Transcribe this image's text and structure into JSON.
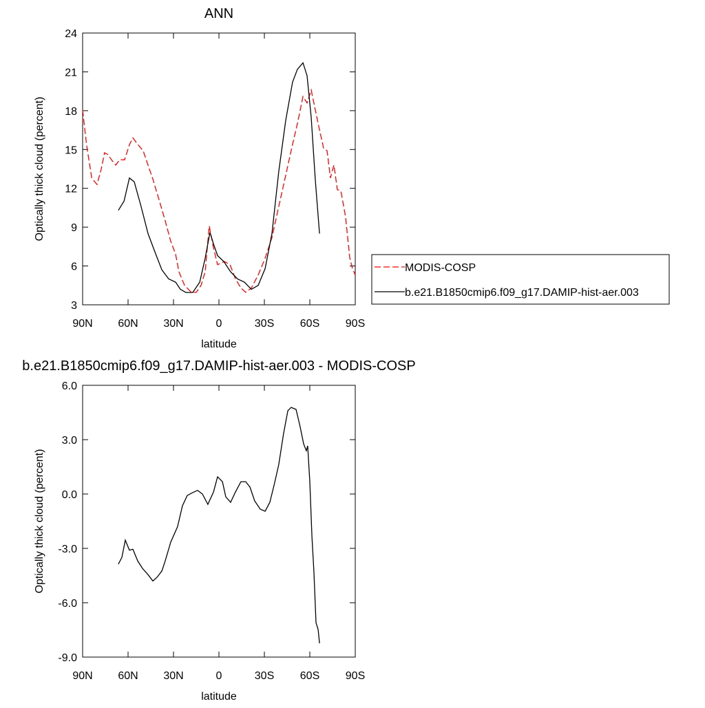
{
  "chart_data": [
    {
      "type": "line",
      "title": "ANN",
      "xlabel": "latitude",
      "ylabel": "Optically thick cloud (percent)",
      "xlim": [
        90,
        -90
      ],
      "xticks": [
        {
          "value": 90,
          "label": "90N"
        },
        {
          "value": 60,
          "label": "60N"
        },
        {
          "value": 30,
          "label": "30N"
        },
        0,
        {
          "value": -30,
          "label": "30S"
        },
        {
          "value": -60,
          "label": "60S"
        },
        {
          "value": -90,
          "label": "90S"
        }
      ],
      "ylim": [
        3,
        24
      ],
      "yticks": [
        3,
        6,
        9,
        12,
        15,
        18,
        21,
        24
      ],
      "legend": "right",
      "series": [
        {
          "name": "MODIS-COSP",
          "color": "#ff0000",
          "dash": true,
          "x": [
            90,
            87.3,
            84,
            80.5,
            77.7,
            75.5,
            73.2,
            70.9,
            68.2,
            65.5,
            62.3,
            59,
            56.8,
            53.6,
            50,
            46.8,
            43.6,
            39,
            35.5,
            31.8,
            28.6,
            26.4,
            22.7,
            18.2,
            15,
            11.8,
            9.1,
            6.4,
            3.6,
            0.9,
            -3.6,
            -7.3,
            -10.9,
            -14.5,
            -17.7,
            -21.4,
            -25.9,
            -30.5,
            -35,
            -39.5,
            -44.1,
            -48.6,
            -51.8,
            -55.5,
            -58.2,
            -60.9,
            -62.7,
            -65.5,
            -69.1,
            -71.4,
            -73.6,
            -75.9,
            -78.2,
            -80.5,
            -83.6,
            -86.4,
            -88.2,
            -90
          ],
          "values": [
            18.05,
            15.3,
            12.8,
            12.3,
            13.5,
            14.75,
            14.6,
            14.2,
            13.8,
            14.2,
            14.2,
            15.4,
            15.9,
            15.4,
            14.9,
            13.8,
            12.7,
            10.9,
            9.5,
            7.9,
            6.9,
            5.55,
            4.5,
            3.96,
            3.96,
            4.5,
            5.55,
            9.1,
            7.4,
            6.1,
            6.35,
            6.1,
            5.0,
            4.3,
            3.96,
            4.3,
            5.3,
            6.6,
            8.2,
            10.6,
            13.0,
            15.4,
            17.0,
            19.1,
            18.6,
            19.6,
            18.6,
            17.0,
            15.1,
            14.9,
            12.8,
            13.8,
            11.9,
            11.8,
            9.8,
            6.6,
            5.8,
            5.3
          ]
        },
        {
          "name": "b.e21.B1850cmip6.f09_g17.DAMIP-hist-aer.003",
          "color": "#000000",
          "dash": false,
          "x": [
            66.4,
            62.7,
            59.1,
            55.9,
            51.4,
            46.8,
            42.3,
            37.7,
            33.2,
            28.6,
            25.5,
            21.8,
            17.3,
            12.7,
            9.1,
            5.9,
            3.6,
            0.9,
            -3.2,
            -7.7,
            -12.3,
            -16.8,
            -21.4,
            -25.9,
            -30.5,
            -35,
            -39.5,
            -44.1,
            -48.6,
            -51.8,
            -55.5,
            -58.2,
            -60.9,
            -63.6,
            -66.4
          ],
          "values": [
            10.3,
            11.0,
            12.8,
            12.5,
            10.6,
            8.5,
            7.1,
            5.7,
            5.0,
            4.75,
            4.2,
            3.95,
            3.95,
            4.75,
            6.6,
            8.6,
            7.7,
            6.8,
            6.35,
            5.55,
            5.0,
            4.75,
            4.2,
            4.5,
            5.8,
            8.5,
            13.3,
            17.25,
            20.2,
            21.2,
            21.7,
            20.7,
            17.5,
            12.7,
            8.5
          ]
        }
      ]
    },
    {
      "type": "line",
      "title": "b.e21.B1850cmip6.f09_g17.DAMIP-hist-aer.003 - MODIS-COSP",
      "xlabel": "latitude",
      "ylabel": "Optically thick cloud (percent)",
      "xlim": [
        90,
        -90
      ],
      "xticks": [
        {
          "value": 90,
          "label": "90N"
        },
        {
          "value": 60,
          "label": "60N"
        },
        {
          "value": 30,
          "label": "30N"
        },
        0,
        {
          "value": -30,
          "label": "30S"
        },
        {
          "value": -60,
          "label": "60S"
        },
        {
          "value": -90,
          "label": "90S"
        }
      ],
      "ylim": [
        -9,
        6
      ],
      "yticks": [
        {
          "value": -9,
          "label": "-9.0"
        },
        {
          "value": -6,
          "label": "-6.0"
        },
        {
          "value": -3,
          "label": "-3.0"
        },
        {
          "value": 0,
          "label": "0.0"
        },
        {
          "value": 3,
          "label": "3.0"
        },
        {
          "value": 6,
          "label": "6.0"
        }
      ],
      "series": [
        {
          "color": "#000000",
          "dash": false,
          "x": [
            66.4,
            64.1,
            61.8,
            59.1,
            56.8,
            53.6,
            50.5,
            46.8,
            43.6,
            40.9,
            37.7,
            35.5,
            31.8,
            27.3,
            24.1,
            20.9,
            17.3,
            14.1,
            10.9,
            7.3,
            3.6,
            0.9,
            -2.3,
            -4.5,
            -7.7,
            -10.9,
            -14.5,
            -17.7,
            -20.5,
            -23.6,
            -27.3,
            -30.5,
            -33.6,
            -36.4,
            -39.5,
            -42.7,
            -45.5,
            -47.7,
            -50.9,
            -53.6,
            -55.9,
            -57.7,
            -58.6,
            -60,
            -61.4,
            -62.7,
            -64.1,
            -65.5,
            -66.4
          ],
          "values": [
            -3.87,
            -3.5,
            -2.55,
            -3.1,
            -3.05,
            -3.7,
            -4.1,
            -4.45,
            -4.8,
            -4.6,
            -4.25,
            -3.7,
            -2.65,
            -1.8,
            -0.65,
            -0.08,
            0.08,
            0.2,
            0,
            -0.57,
            0.11,
            0.95,
            0.68,
            -0.15,
            -0.46,
            0.11,
            0.68,
            0.68,
            0.38,
            -0.38,
            -0.84,
            -0.95,
            -0.46,
            0.49,
            1.63,
            3.34,
            4.6,
            4.78,
            4.67,
            3.72,
            2.77,
            2.39,
            2.66,
            0.68,
            -2.36,
            -4.25,
            -7.1,
            -7.48,
            -8.24
          ]
        }
      ]
    }
  ]
}
